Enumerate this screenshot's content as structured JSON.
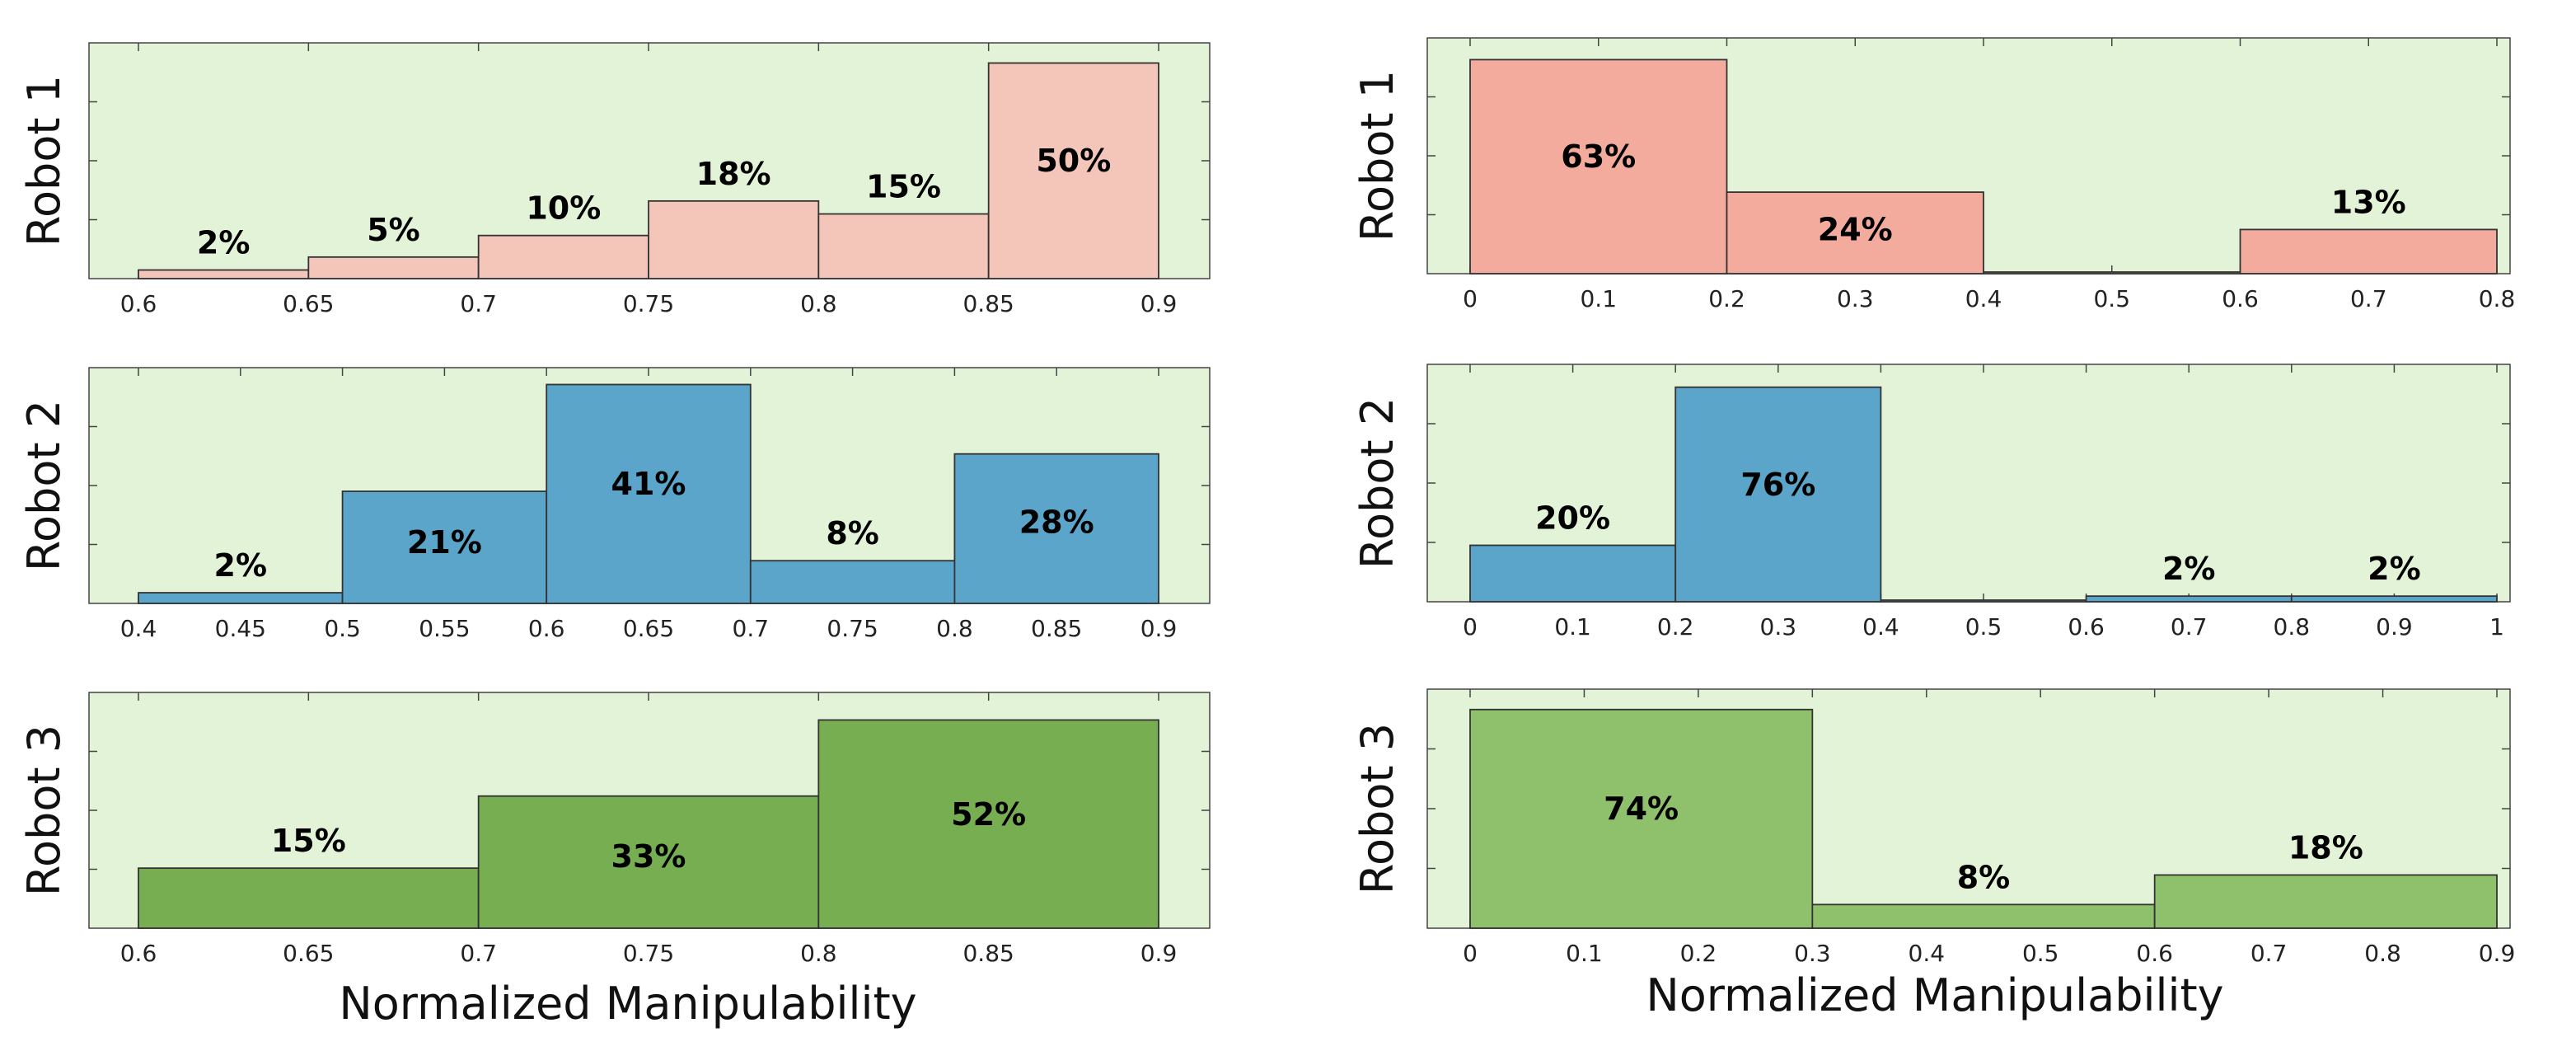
{
  "colors": {
    "background": "#e3f3d7",
    "robot1_left": "#f4c6ba",
    "robot1_right": "#f2ab9c",
    "robot2": "#5aa5c9",
    "robot3_left": "#78ae52",
    "robot3_right": "#8fc16c",
    "edge": "#333333"
  },
  "xlabels": {
    "left": "Normalized Manipulability",
    "right": "Normalized Manipulability"
  },
  "chart_data": [
    {
      "type": "bar",
      "column": "left",
      "row": 0,
      "ylabel": "Robot 1",
      "xlabel": "",
      "xlim": [
        0.6,
        0.9
      ],
      "ylim": [
        0,
        52
      ],
      "xticks": [
        "0.6",
        "0.65",
        "0.7",
        "0.75",
        "0.8",
        "0.85",
        "0.9"
      ],
      "tick_values": [
        0.6,
        0.65,
        0.7,
        0.75,
        0.8,
        0.85,
        0.9
      ],
      "bins": [
        [
          0.6,
          0.65
        ],
        [
          0.65,
          0.7
        ],
        [
          0.7,
          0.75
        ],
        [
          0.75,
          0.8
        ],
        [
          0.8,
          0.85
        ],
        [
          0.85,
          0.9
        ]
      ],
      "values": [
        2,
        5,
        10,
        18,
        15,
        50
      ],
      "labels": [
        "2%",
        "5%",
        "10%",
        "18%",
        "15%",
        "50%"
      ],
      "label_mode": [
        "above",
        "above",
        "above",
        "above",
        "above",
        "inside"
      ],
      "color_key": "robot1_left"
    },
    {
      "type": "bar",
      "column": "left",
      "row": 1,
      "ylabel": "Robot 2",
      "xlabel": "",
      "xlim": [
        0.4,
        0.9
      ],
      "ylim": [
        0,
        42
      ],
      "xticks": [
        "0.4",
        "0.45",
        "0.5",
        "0.55",
        "0.6",
        "0.65",
        "0.7",
        "0.75",
        "0.8",
        "0.85",
        "0.9"
      ],
      "tick_values": [
        0.4,
        0.45,
        0.5,
        0.55,
        0.6,
        0.65,
        0.7,
        0.75,
        0.8,
        0.85,
        0.9
      ],
      "bins": [
        [
          0.4,
          0.5
        ],
        [
          0.5,
          0.6
        ],
        [
          0.6,
          0.7
        ],
        [
          0.7,
          0.8
        ],
        [
          0.8,
          0.9
        ]
      ],
      "values": [
        2,
        21,
        41,
        8,
        28
      ],
      "labels": [
        "2%",
        "21%",
        "41%",
        "8%",
        "28%"
      ],
      "label_mode": [
        "above",
        "inside",
        "inside",
        "above",
        "inside"
      ],
      "color_key": "robot2"
    },
    {
      "type": "bar",
      "column": "left",
      "row": 2,
      "ylabel": "Robot 3",
      "xlabel": "Normalized Manipulability",
      "xlim": [
        0.6,
        0.9
      ],
      "ylim": [
        0,
        56
      ],
      "xticks": [
        "0.6",
        "0.65",
        "0.7",
        "0.75",
        "0.8",
        "0.85",
        "0.9"
      ],
      "tick_values": [
        0.6,
        0.65,
        0.7,
        0.75,
        0.8,
        0.85,
        0.9
      ],
      "bins": [
        [
          0.6,
          0.7
        ],
        [
          0.7,
          0.8
        ],
        [
          0.8,
          0.9
        ]
      ],
      "values": [
        15,
        33,
        52
      ],
      "labels": [
        "15%",
        "33%",
        "52%"
      ],
      "label_mode": [
        "above",
        "inside",
        "inside"
      ],
      "color_key": "robot3_left"
    },
    {
      "type": "bar",
      "column": "right",
      "row": 0,
      "ylabel": "Robot 1",
      "xlabel": "",
      "xlim": [
        0,
        0.8
      ],
      "ylim": [
        0,
        66
      ],
      "xticks": [
        "0",
        "0.1",
        "0.2",
        "0.3",
        "0.4",
        "0.5",
        "0.6",
        "0.7",
        "0.8"
      ],
      "tick_values": [
        0,
        0.1,
        0.2,
        0.3,
        0.4,
        0.5,
        0.6,
        0.7,
        0.8
      ],
      "bins": [
        [
          0,
          0.2
        ],
        [
          0.2,
          0.4
        ],
        [
          0.4,
          0.6
        ],
        [
          0.6,
          0.8
        ]
      ],
      "values": [
        63,
        24,
        0,
        13
      ],
      "labels": [
        "63%",
        "24%",
        "",
        "13%"
      ],
      "label_mode": [
        "inside",
        "inside",
        "none",
        "above"
      ],
      "color_key": "robot1_right"
    },
    {
      "type": "bar",
      "column": "right",
      "row": 1,
      "ylabel": "Robot 2",
      "xlabel": "",
      "xlim": [
        0,
        1
      ],
      "ylim": [
        0,
        80
      ],
      "xticks": [
        "0",
        "0.1",
        "0.2",
        "0.3",
        "0.4",
        "0.5",
        "0.6",
        "0.7",
        "0.8",
        "0.9",
        "1"
      ],
      "tick_values": [
        0,
        0.1,
        0.2,
        0.3,
        0.4,
        0.5,
        0.6,
        0.7,
        0.8,
        0.9,
        1
      ],
      "bins": [
        [
          0,
          0.2
        ],
        [
          0.2,
          0.4
        ],
        [
          0.4,
          0.6
        ],
        [
          0.6,
          0.8
        ],
        [
          0.8,
          1
        ]
      ],
      "values": [
        20,
        76,
        0,
        2,
        2
      ],
      "labels": [
        "20%",
        "76%",
        "",
        "2%",
        "2%"
      ],
      "label_mode": [
        "above",
        "inside",
        "none",
        "above",
        "above"
      ],
      "color_key": "robot2"
    },
    {
      "type": "bar",
      "column": "right",
      "row": 2,
      "ylabel": "Robot 3",
      "xlabel": "Normalized Manipulability",
      "xlim": [
        0,
        0.9
      ],
      "ylim": [
        0,
        77
      ],
      "xticks": [
        "0",
        "0.1",
        "0.2",
        "0.3",
        "0.4",
        "0.5",
        "0.6",
        "0.7",
        "0.8",
        "0.9"
      ],
      "tick_values": [
        0,
        0.1,
        0.2,
        0.3,
        0.4,
        0.5,
        0.6,
        0.7,
        0.8,
        0.9
      ],
      "bins": [
        [
          0,
          0.3
        ],
        [
          0.3,
          0.6
        ],
        [
          0.6,
          0.9
        ]
      ],
      "values": [
        74,
        8,
        18
      ],
      "labels": [
        "74%",
        "8%",
        "18%"
      ],
      "label_mode": [
        "inside",
        "above",
        "above"
      ],
      "color_key": "robot3_right"
    }
  ]
}
